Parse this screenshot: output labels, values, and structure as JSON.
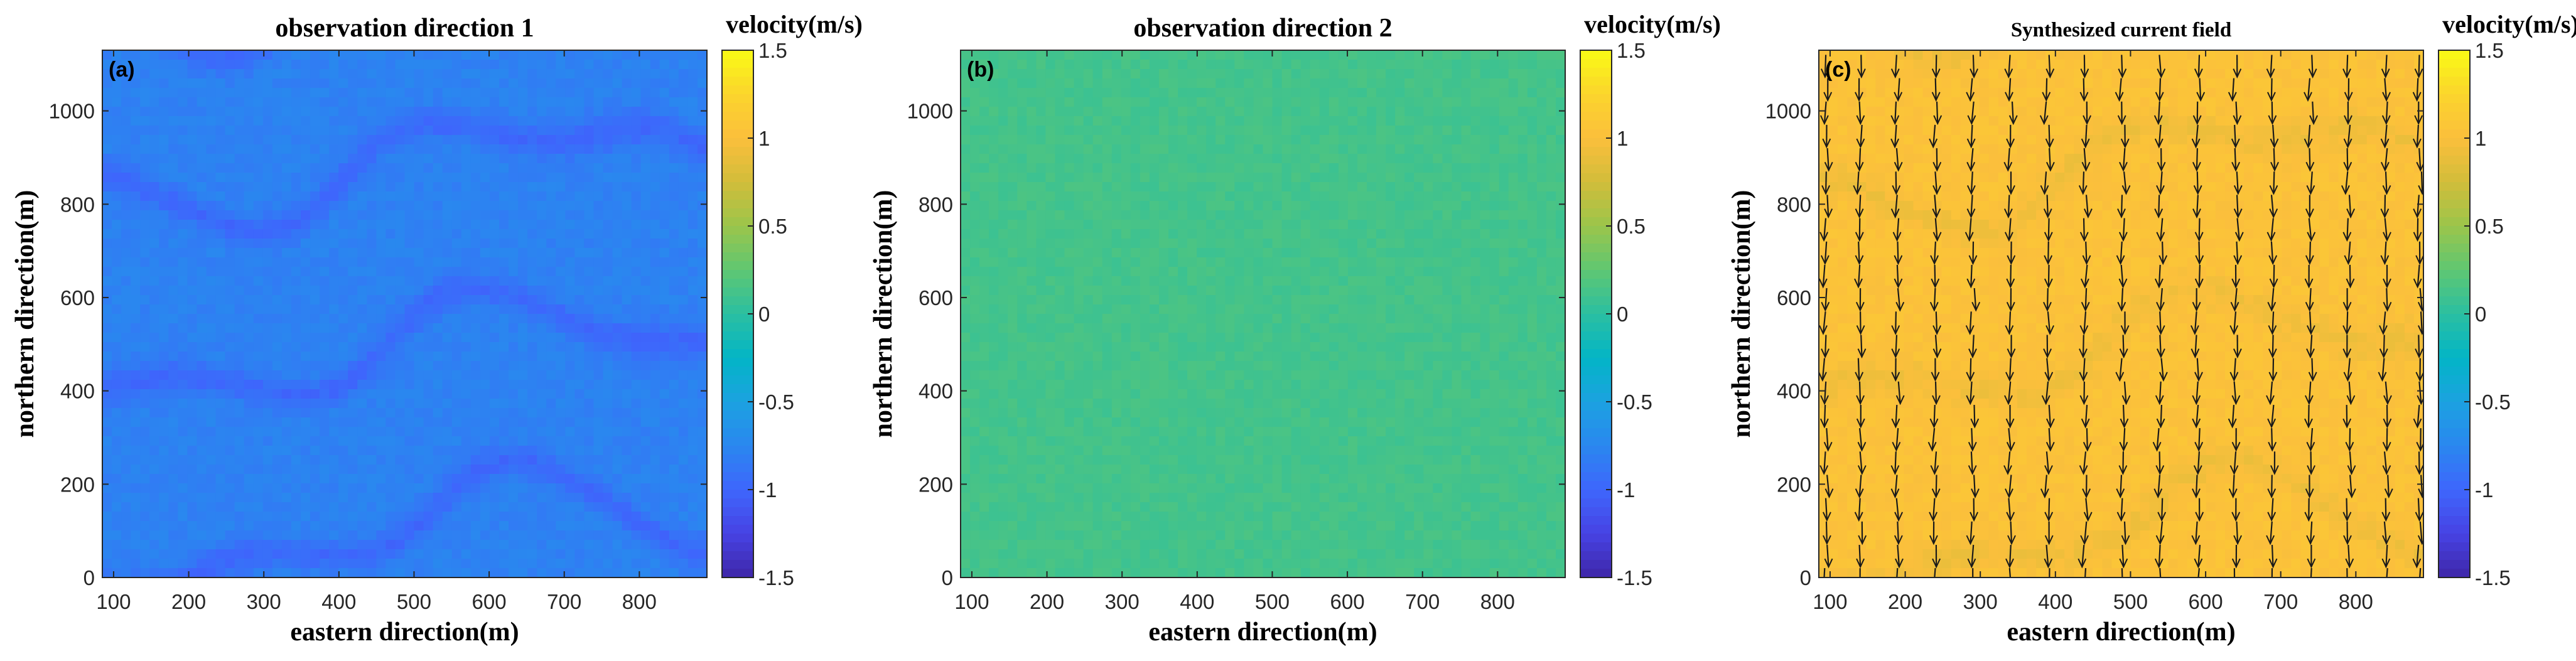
{
  "figure": "Three-panel velocity map: two observation directions and the synthesized current field",
  "colors": {
    "parula": [
      "#3e26a8",
      "#4743e4",
      "#3e66fc",
      "#2a87ef",
      "#1ba2e0",
      "#03b5c6",
      "#2bbfa1",
      "#5fc772",
      "#9bc54b",
      "#d2bd3a",
      "#fbbf3c",
      "#fbd52c",
      "#f9fb15"
    ],
    "axis": "#262626",
    "arrow": "#1a1a1a"
  },
  "chart_data": [
    {
      "type": "heatmap",
      "panel_label": "(a)",
      "title": "observation direction 1",
      "xlabel": "eastern direction(m)",
      "ylabel": "northern direction(m)",
      "xlim": [
        85,
        890
      ],
      "ylim": [
        0,
        1130
      ],
      "xticks": [
        100,
        200,
        300,
        400,
        500,
        600,
        700,
        800
      ],
      "yticks": [
        0,
        200,
        400,
        600,
        800,
        1000
      ],
      "colorbar": {
        "label": "velocity(m/s)",
        "clim": [
          -1.5,
          1.5
        ],
        "ticks": [
          "1.5",
          "1",
          "0.5",
          "0",
          "-0.5",
          "-1",
          "-1.5"
        ]
      },
      "field": {
        "mean": -0.82,
        "wave_amplitude": 0.12,
        "noise": 0.05,
        "wave_bands": true
      }
    },
    {
      "type": "heatmap",
      "panel_label": "(b)",
      "title": "observation direction 2",
      "xlabel": "eastern direction(m)",
      "ylabel": "northern direction(m)",
      "xlim": [
        85,
        890
      ],
      "ylim": [
        0,
        1130
      ],
      "xticks": [
        100,
        200,
        300,
        400,
        500,
        600,
        700,
        800
      ],
      "yticks": [
        0,
        200,
        400,
        600,
        800,
        1000
      ],
      "colorbar": {
        "label": "velocity(m/s)",
        "clim": [
          -1.5,
          1.5
        ],
        "ticks": [
          "1.5",
          "1",
          "0.5",
          "0",
          "-0.5",
          "-1",
          "-1.5"
        ]
      },
      "field": {
        "mean": 0.12,
        "wave_amplitude": 0.0,
        "noise": 0.04,
        "wave_bands": false
      }
    },
    {
      "type": "heatmap",
      "panel_label": "(c)",
      "title": "Synthesized current field",
      "xlabel": "eastern direction(m)",
      "ylabel": "northern direction(m)",
      "xlim": [
        85,
        890
      ],
      "ylim": [
        0,
        1130
      ],
      "xticks": [
        100,
        200,
        300,
        400,
        500,
        600,
        700,
        800
      ],
      "yticks": [
        0,
        200,
        400,
        600,
        800,
        1000
      ],
      "colorbar": {
        "label": "velocity(m/s)",
        "clim": [
          -1.5,
          1.5
        ],
        "ticks": [
          "1.5",
          "1",
          "0.5",
          "0",
          "-0.5",
          "-1",
          "-1.5"
        ]
      },
      "field": {
        "mean": 1.02,
        "wave_amplitude": 0.06,
        "noise": 0.05,
        "wave_bands": true
      },
      "quiver": {
        "x": [
          95,
          140,
          190,
          240,
          290,
          340,
          390,
          440,
          490,
          540,
          590,
          640,
          690,
          740,
          790,
          840,
          885
        ],
        "y_spacing": 50,
        "direction": "south"
      }
    }
  ]
}
